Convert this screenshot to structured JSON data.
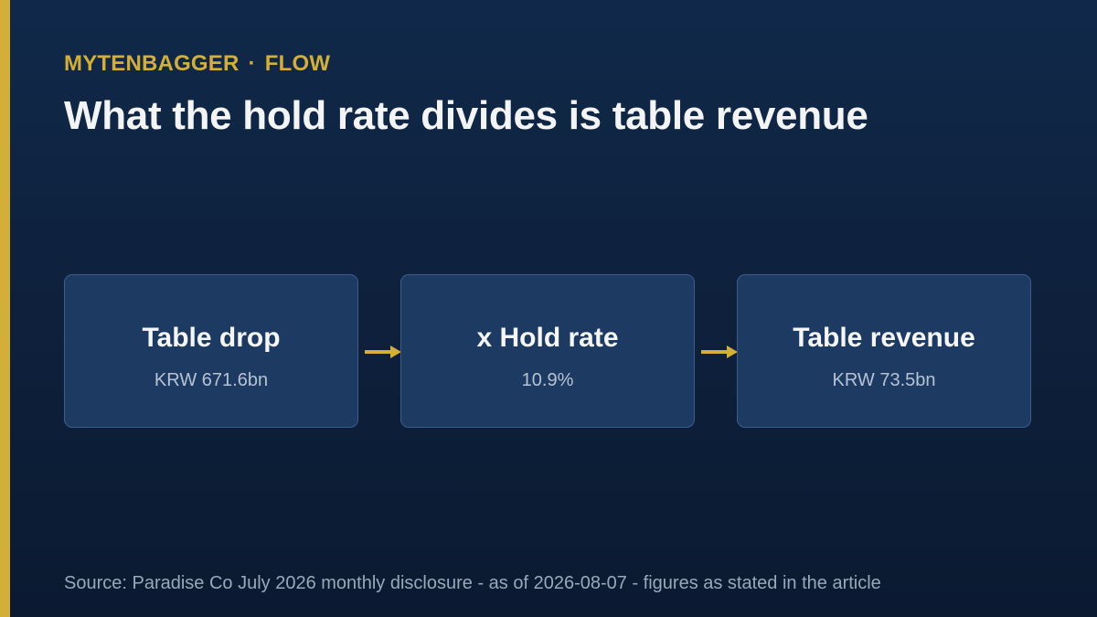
{
  "header": {
    "brand": "MYTENBAGGER",
    "separator": "·",
    "section": "FLOW",
    "title": "What the hold rate divides is table revenue"
  },
  "flow": {
    "steps": [
      {
        "label": "Table drop",
        "value": "KRW 671.6bn"
      },
      {
        "label": "x Hold rate",
        "value": "10.9%"
      },
      {
        "label": "Table revenue",
        "value": "KRW 73.5bn"
      }
    ],
    "connector_icon": "arrow-right-icon"
  },
  "footer": {
    "source": "Source: Paradise Co July 2026 monthly disclosure - as of 2026-08-07 - figures as stated in the article"
  },
  "colors": {
    "background": "#0e213d",
    "accent": "#d4af37",
    "box_fill": "#1c3a62",
    "box_border": "#3d5d87",
    "title_text": "#f3f4f6",
    "muted_text": "#9aa8bb"
  }
}
